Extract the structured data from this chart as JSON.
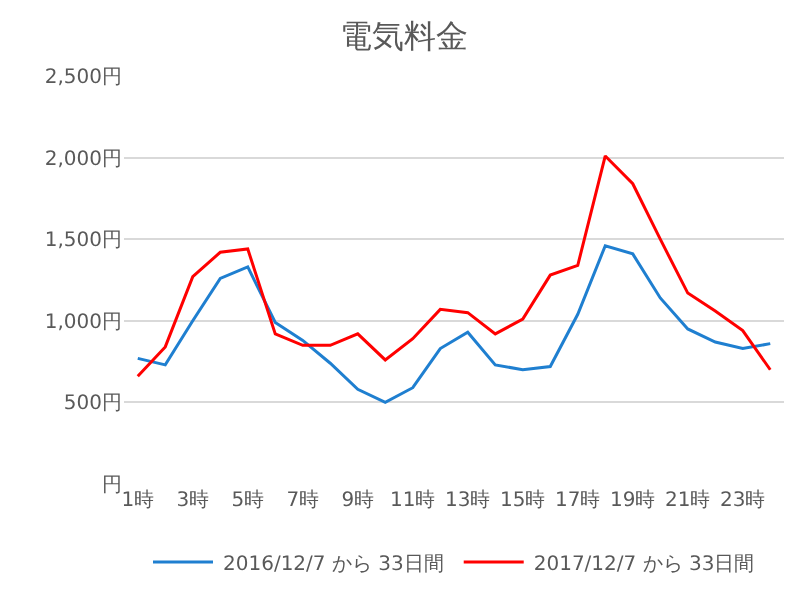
{
  "chart_data": {
    "type": "line",
    "title": "電気料金",
    "categories": [
      "1時",
      null,
      "3時",
      null,
      "5時",
      null,
      "7時",
      null,
      "9時",
      null,
      "11時",
      null,
      "13時",
      null,
      "15時",
      null,
      "17時",
      null,
      "19時",
      null,
      "21時",
      null,
      "23時",
      null
    ],
    "series": [
      {
        "name": "2016/12/7 から 33日間",
        "color": "#1f7fd0",
        "values": [
          770,
          730,
          1000,
          1260,
          1330,
          990,
          880,
          740,
          580,
          500,
          590,
          830,
          930,
          730,
          700,
          720,
          1040,
          1460,
          1410,
          1140,
          950,
          870,
          830,
          860
        ]
      },
      {
        "name": "2017/12/7 から 33日間",
        "color": "#ff0000",
        "values": [
          660,
          840,
          1270,
          1420,
          1440,
          920,
          850,
          850,
          920,
          760,
          890,
          1070,
          1050,
          920,
          1010,
          1280,
          1340,
          2010,
          1840,
          1500,
          1170,
          1060,
          940,
          700
        ]
      }
    ],
    "ylim": [
      0,
      2500
    ],
    "yticks": [
      {
        "value": 0,
        "label": "円"
      },
      {
        "value": 500,
        "label": "500円"
      },
      {
        "value": 1000,
        "label": "1,000円"
      },
      {
        "value": 1500,
        "label": "1,500円"
      },
      {
        "value": 2000,
        "label": "2,000円"
      },
      {
        "value": 2500,
        "label": "2,500円"
      }
    ],
    "grid": "y",
    "legend": "bottom",
    "marker": "none",
    "line_style": "solid"
  }
}
